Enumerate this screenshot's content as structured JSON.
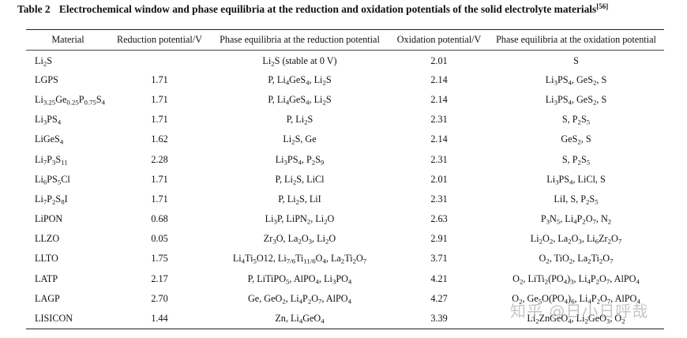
{
  "caption": {
    "label": "Table 2",
    "text": "Electrochemical window and phase equilibria at the reduction and oxidation potentials of the solid electrolyte materials",
    "ref": "[56]"
  },
  "table": {
    "headers": [
      "Material",
      "Reduction potential/V",
      "Phase equilibria at the reduction potential",
      "Oxidation potential/V",
      "Phase equilibria at the oxidation potential"
    ],
    "rows": [
      {
        "material": "Li_{2}S",
        "reduction": "",
        "red_phase": "Li_{2}S (stable at 0 V)",
        "oxidation": "2.01",
        "ox_phase": "S"
      },
      {
        "material": "LGPS",
        "reduction": "1.71",
        "red_phase": "P, Li_{4}GeS_{4}, Li_{2}S",
        "oxidation": "2.14",
        "ox_phase": "Li_{3}PS_{4}, GeS_{2}, S"
      },
      {
        "material": "Li_{3.25}Ge_{0.25}P_{0.75}S_{4}",
        "reduction": "1.71",
        "red_phase": "P, Li_{4}GeS_{4}, Li_{2}S",
        "oxidation": "2.14",
        "ox_phase": "Li_{3}PS_{4}, GeS_{2}, S"
      },
      {
        "material": "Li_{3}PS_{4}",
        "reduction": "1.71",
        "red_phase": "P, Li_{2}S",
        "oxidation": "2.31",
        "ox_phase": "S, P_{2}S_{5}"
      },
      {
        "material": "LiGeS_{4}",
        "reduction": "1.62",
        "red_phase": "Li_{2}S, Ge",
        "oxidation": "2.14",
        "ox_phase": "GeS_{2}, S"
      },
      {
        "material": "Li_{7}P_{3}S_{11}",
        "reduction": "2.28",
        "red_phase": "Li_{3}PS_{4}, P_{2}S_{9}",
        "oxidation": "2.31",
        "ox_phase": "S, P_{2}S_{5}"
      },
      {
        "material": "Li_{6}PS_{5}Cl",
        "reduction": "1.71",
        "red_phase": "P, Li_{2}S, LiCl",
        "oxidation": "2.01",
        "ox_phase": "Li_{3}PS_{4}, LiCl, S"
      },
      {
        "material": "Li_{7}P_{2}S_{8}I",
        "reduction": "1.71",
        "red_phase": "P, Li_{2}S, LiI",
        "oxidation": "2.31",
        "ox_phase": "LiI, S, P_{2}S_{5}"
      },
      {
        "material": "LiPON",
        "reduction": "0.68",
        "red_phase": "Li_{3}P, LiPN_{2}, Li_{2}O",
        "oxidation": "2.63",
        "ox_phase": "P_{3}N_{5}, Li_{4}P_{2}O_{7}, N_{2}"
      },
      {
        "material": "LLZO",
        "reduction": "0.05",
        "red_phase": "Zr_{3}O, La_{2}O_{3}, Li_{2}O",
        "oxidation": "2.91",
        "ox_phase": "Li_{2}O_{2}, La_{2}O_{3}, Li_{6}Zr_{2}O_{7}"
      },
      {
        "material": "LLTO",
        "reduction": "1.75",
        "red_phase": "Li_{4}Ti_{5}O12, Li_{7/6}Ti_{11/6}O_{4}, La_{2}Ti_{2}O_{7}",
        "oxidation": "3.71",
        "ox_phase": "O_{2}, TiO_{2}, La_{2}Ti_{2}O_{7}"
      },
      {
        "material": "LATP",
        "reduction": "2.17",
        "red_phase": "P, LiTiPO_{5}, AlPO_{4}, Li_{3}PO_{4}",
        "oxidation": "4.21",
        "ox_phase": "O_{2}, LiTi_{2}(PO_{4})_{3}, Li_{4}P_{2}O_{7}, AlPO_{4}"
      },
      {
        "material": "LAGP",
        "reduction": "2.70",
        "red_phase": "Ge, GeO_{2}, Li_{4}P_{2}O_{7}, AlPO_{4}",
        "oxidation": "4.27",
        "ox_phase": "O_{2}, Ge_{5}O(PO_{4})_{6}, Li_{4}P_{2}O_{7}, AlPO_{4}"
      },
      {
        "material": "LISICON",
        "reduction": "1.44",
        "red_phase": "Zn, Li_{4}GeO_{4}",
        "oxidation": "3.39",
        "ox_phase": "Li_{2}ZnGeO_{4}, Li_{2}GeO_{3}, O_{2}"
      }
    ]
  },
  "watermark": "知乎 @日小日呼哉"
}
